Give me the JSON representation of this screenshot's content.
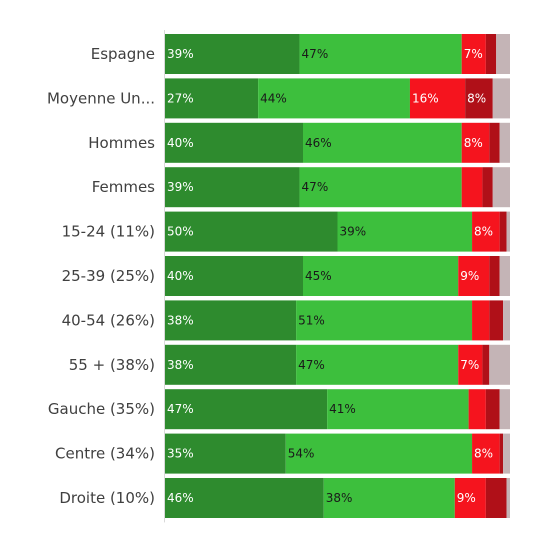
{
  "chart_data": {
    "type": "bar",
    "orientation": "horizontal",
    "stacked": "percent",
    "title": "",
    "xlabel": "",
    "ylabel": "",
    "xlim": [
      0,
      100
    ],
    "grid": false,
    "legend": "none",
    "categories": [
      "Espagne",
      "Moyenne Un...",
      "Hommes",
      "Femmes",
      "15-24 (11%)",
      "25-39 (25%)",
      "40-54 (26%)",
      "55 + (38%)",
      "Gauche (35%)",
      "Centre (34%)",
      "Droite (10%)"
    ],
    "series": [
      {
        "color": "#2e8b2e",
        "label_color": "#ffffff",
        "values": [
          39,
          27,
          40,
          39,
          50,
          40,
          38,
          38,
          47,
          35,
          46
        ],
        "labels": [
          "39%",
          "27%",
          "40%",
          "39%",
          "50%",
          "40%",
          "38%",
          "38%",
          "47%",
          "35%",
          "46%"
        ]
      },
      {
        "color": "#3dbf3d",
        "label_color": "#1a1a1a",
        "values": [
          47,
          44,
          46,
          47,
          39,
          45,
          51,
          47,
          41,
          54,
          38
        ],
        "labels": [
          "47%",
          "44%",
          "46%",
          "47%",
          "39%",
          "45%",
          "51%",
          "47%",
          "41%",
          "54%",
          "38%"
        ]
      },
      {
        "color": "#f5141e",
        "label_color": "#ffffff",
        "values": [
          7,
          16,
          8,
          6,
          8,
          9,
          5,
          7,
          5,
          8,
          9
        ],
        "labels": [
          "7%",
          "16%",
          "8%",
          "",
          "8%",
          "9%",
          "",
          "7%",
          "",
          "8%",
          "9%"
        ]
      },
      {
        "color": "#b01018",
        "label_color": "#ffffff",
        "values": [
          3,
          8,
          3,
          3,
          2,
          3,
          4,
          2,
          4,
          1,
          6
        ],
        "labels": [
          "",
          "8%",
          "",
          "",
          "",
          "",
          "",
          "",
          "",
          "",
          ""
        ]
      },
      {
        "color": "#c4b4b6",
        "label_color": "#1a1a1a",
        "values": [
          4,
          5,
          3,
          5,
          1,
          3,
          2,
          6,
          3,
          2,
          1
        ],
        "labels": [
          "",
          "",
          "",
          "",
          "",
          "",
          "",
          "",
          "",
          "",
          ""
        ]
      }
    ]
  }
}
